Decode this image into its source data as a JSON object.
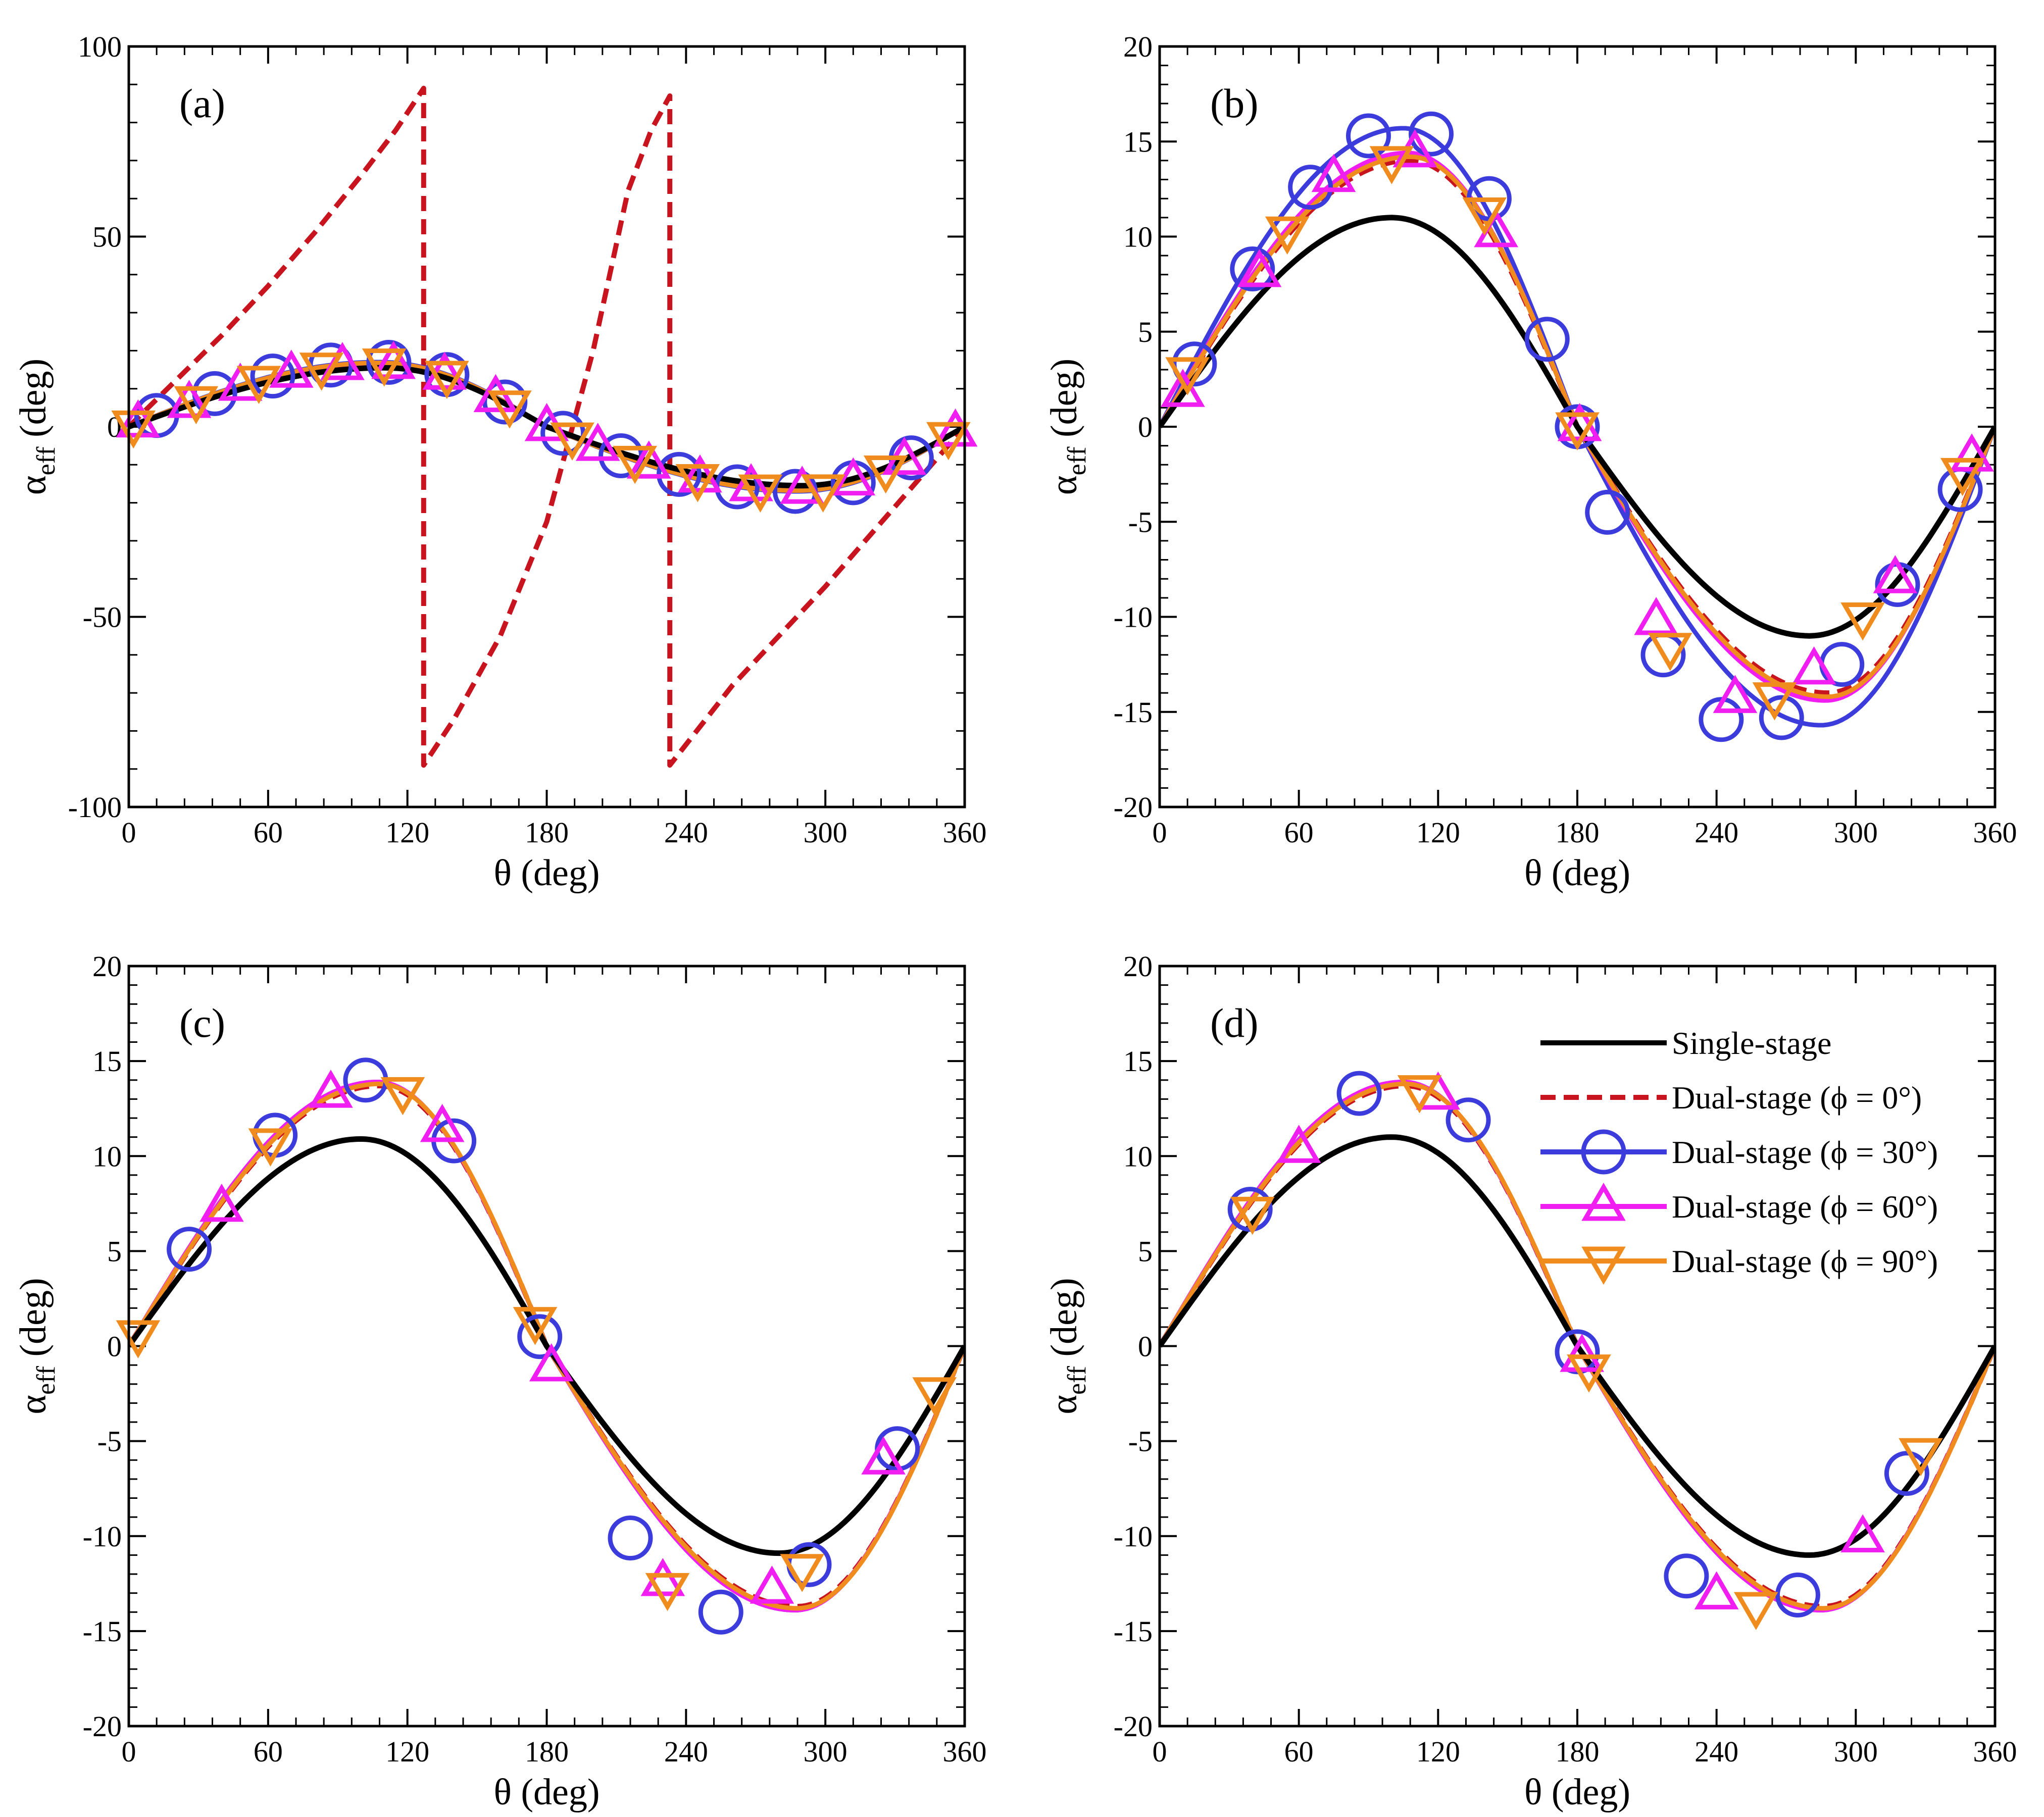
{
  "figure": {
    "colors": {
      "single": "#000000",
      "phi0": "#c8141e",
      "phi30": "#3c3cdc",
      "phi60": "#f01ef0",
      "phi90": "#f08c1e"
    },
    "legend": {
      "single": "Single-stage",
      "phi0": "Dual-stage (ϕ = 0°)",
      "phi30": "Dual-stage (ϕ = 30°)",
      "phi60": "Dual-stage (ϕ = 60°)",
      "phi90": "Dual-stage (ϕ = 90°)"
    }
  },
  "chart_data": [
    {
      "type": "line",
      "panel_label": "(a)",
      "xlabel": "θ (deg)",
      "ylabel": "α_eff (deg)",
      "xlim": [
        0,
        360
      ],
      "ylim": [
        -100,
        100
      ],
      "xticks": [
        "0",
        "60",
        "120",
        "180",
        "240",
        "300",
        "360"
      ],
      "yticks": [
        "-100",
        "-50",
        "0",
        "50",
        "100"
      ],
      "series": [
        {
          "name": "Single-stage",
          "key": "single",
          "amp": 15.5,
          "peak": 110,
          "points": [
            [
              0,
              0
            ],
            [
              360,
              0
            ]
          ]
        },
        {
          "name": "Dual-stage (ϕ = 0°)",
          "key": "phi0",
          "points": [
            [
              0,
              0
            ],
            [
              20,
              12
            ],
            [
              40,
              24
            ],
            [
              60,
              37
            ],
            [
              80,
              51
            ],
            [
              100,
              66
            ],
            [
              115,
              78
            ],
            [
              127,
              89
            ],
            [
              127,
              -89
            ],
            [
              140,
              -77
            ],
            [
              160,
              -55
            ],
            [
              180,
              -25
            ],
            [
              200,
              20
            ],
            [
              215,
              62
            ],
            [
              225,
              78
            ],
            [
              233,
              87
            ],
            [
              233,
              -89
            ],
            [
              260,
              -68
            ],
            [
              300,
              -42
            ],
            [
              340,
              -14
            ],
            [
              360,
              0
            ]
          ]
        },
        {
          "name": "Dual-stage (ϕ = 30°)",
          "key": "phi30",
          "amp": 17,
          "peak": 108,
          "points": [
            [
              0,
              0
            ],
            [
              360,
              0
            ]
          ]
        },
        {
          "name": "Dual-stage (ϕ = 60°)",
          "key": "phi60",
          "amp": 16.5,
          "peak": 108,
          "points": [
            [
              0,
              0
            ],
            [
              360,
              0
            ]
          ]
        },
        {
          "name": "Dual-stage (ϕ = 90°)",
          "key": "phi90",
          "amp": 16.8,
          "peak": 108,
          "points": [
            [
              0,
              0
            ],
            [
              360,
              0
            ]
          ]
        }
      ]
    },
    {
      "type": "line",
      "panel_label": "(b)",
      "xlabel": "θ (deg)",
      "ylabel": "α_eff (deg)",
      "xlim": [
        0,
        360
      ],
      "ylim": [
        -20,
        20
      ],
      "xticks": [
        "0",
        "60",
        "120",
        "180",
        "240",
        "300",
        "360"
      ],
      "yticks": [
        "-20",
        "-15",
        "-10",
        "-5",
        "0",
        "5",
        "10",
        "15",
        "20"
      ],
      "series": [
        {
          "name": "Single-stage",
          "key": "single",
          "amp": 11,
          "peak": 100
        },
        {
          "name": "Dual-stage (ϕ = 30°)",
          "key": "phi30",
          "amp": 15.7,
          "peak": 105,
          "markers": [
            [
              15,
              3.3
            ],
            [
              40,
              8.3
            ],
            [
              65,
              12.6
            ],
            [
              90,
              15.3
            ],
            [
              117,
              15.4
            ],
            [
              142,
              12.0
            ],
            [
              167,
              4.6
            ],
            [
              180,
              0
            ],
            [
              193,
              -4.5
            ],
            [
              217,
              -12.0
            ],
            [
              242,
              -15.4
            ],
            [
              268,
              -15.3
            ],
            [
              294,
              -12.5
            ],
            [
              318,
              -8.3
            ],
            [
              345,
              -3.3
            ]
          ]
        },
        {
          "name": "Dual-stage (ϕ = 60°)",
          "key": "phi60",
          "amp": 14.4,
          "peak": 107,
          "markers": [
            [
              10,
              1.8
            ],
            [
              43,
              8.1
            ],
            [
              75,
              13.1
            ],
            [
              110,
              14.4
            ],
            [
              145,
              10.2
            ],
            [
              181,
              0
            ],
            [
              214,
              -10.2
            ],
            [
              248,
              -14.3
            ],
            [
              282,
              -12.8
            ],
            [
              317,
              -8.0
            ],
            [
              350,
              -1.6
            ]
          ]
        },
        {
          "name": "Dual-stage (ϕ = 90°)",
          "key": "phi90",
          "amp": 14.2,
          "peak": 108,
          "markers": [
            [
              12,
              2.9
            ],
            [
              55,
              10.3
            ],
            [
              100,
              14.0
            ],
            [
              140,
              11.3
            ],
            [
              180,
              0
            ],
            [
              220,
              -11.6
            ],
            [
              265,
              -14.2
            ],
            [
              303,
              -10.0
            ],
            [
              346,
              -2.4
            ]
          ]
        },
        {
          "name": "Dual-stage (ϕ = 0°)",
          "key": "phi0",
          "amp": 14.0,
          "peak": 108
        }
      ]
    },
    {
      "type": "line",
      "panel_label": "(c)",
      "xlabel": "θ (deg)",
      "ylabel": "α_eff (deg)",
      "xlim": [
        0,
        360
      ],
      "ylim": [
        -20,
        20
      ],
      "xticks": [
        "0",
        "60",
        "120",
        "180",
        "240",
        "300",
        "360"
      ],
      "yticks": [
        "-20",
        "-15",
        "-10",
        "-5",
        "0",
        "5",
        "10",
        "15",
        "20"
      ],
      "series": [
        {
          "name": "Single-stage",
          "key": "single",
          "amp": 10.9,
          "peak": 100
        },
        {
          "name": "Dual-stage (ϕ = 30°)",
          "key": "phi30",
          "amp": 13.9,
          "peak": 107,
          "markers": [
            [
              26,
              5.1
            ],
            [
              63,
              11.1
            ],
            [
              102,
              14.0
            ],
            [
              140,
              10.8
            ],
            [
              177,
              0.5
            ],
            [
              216,
              -10.1
            ],
            [
              255,
              -14.0
            ],
            [
              293,
              -11.5
            ],
            [
              331,
              -5.4
            ]
          ]
        },
        {
          "name": "Dual-stage (ϕ = 60°)",
          "key": "phi60",
          "amp": 13.9,
          "peak": 107,
          "markers": [
            [
              40,
              7.3
            ],
            [
              87,
              13.3
            ],
            [
              135,
              11.5
            ],
            [
              182,
              -1.1
            ],
            [
              230,
              -12.4
            ],
            [
              277,
              -12.8
            ],
            [
              325,
              -6.0
            ]
          ]
        },
        {
          "name": "Dual-stage (ϕ = 90°)",
          "key": "phi90",
          "amp": 13.8,
          "peak": 108,
          "markers": [
            [
              4,
              0.6
            ],
            [
              61,
              10.7
            ],
            [
              118,
              13.4
            ],
            [
              175,
              1.3
            ],
            [
              232,
              -12.7
            ],
            [
              290,
              -11.7
            ],
            [
              347,
              -2.4
            ]
          ]
        },
        {
          "name": "Dual-stage (ϕ = 0°)",
          "key": "phi0",
          "amp": 13.7,
          "peak": 108
        }
      ]
    },
    {
      "type": "line",
      "panel_label": "(d)",
      "xlabel": "θ (deg)",
      "ylabel": "α_eff (deg)",
      "xlim": [
        0,
        360
      ],
      "ylim": [
        -20,
        20
      ],
      "xticks": [
        "0",
        "60",
        "120",
        "180",
        "240",
        "300",
        "360"
      ],
      "yticks": [
        "-20",
        "-15",
        "-10",
        "-5",
        "0",
        "5",
        "10",
        "15",
        "20"
      ],
      "legend_position": "top-right",
      "series": [
        {
          "name": "Single-stage",
          "key": "single",
          "amp": 11,
          "peak": 100
        },
        {
          "name": "Dual-stage (ϕ = 30°)",
          "key": "phi30",
          "amp": 13.9,
          "peak": 105,
          "markers": [
            [
              39,
              7.2
            ],
            [
              86,
              13.3
            ],
            [
              133,
              11.9
            ],
            [
              180,
              -0.3
            ],
            [
              227,
              -12.1
            ],
            [
              275,
              -13.1
            ],
            [
              322,
              -6.7
            ]
          ]
        },
        {
          "name": "Dual-stage (ϕ = 60°)",
          "key": "phi60",
          "amp": 13.9,
          "peak": 105,
          "markers": [
            [
              60,
              10.4
            ],
            [
              120,
              13.2
            ],
            [
              182,
              -0.6
            ],
            [
              240,
              -13.1
            ],
            [
              303,
              -10.1
            ]
          ]
        },
        {
          "name": "Dual-stage (ϕ = 90°)",
          "key": "phi90",
          "amp": 13.8,
          "peak": 106,
          "markers": [
            [
              40,
              7.1
            ],
            [
              112,
              13.5
            ],
            [
              185,
              -1.2
            ],
            [
              257,
              -13.7
            ],
            [
              328,
              -5.6
            ]
          ]
        },
        {
          "name": "Dual-stage (ϕ = 0°)",
          "key": "phi0",
          "amp": 13.7,
          "peak": 106
        }
      ]
    }
  ]
}
